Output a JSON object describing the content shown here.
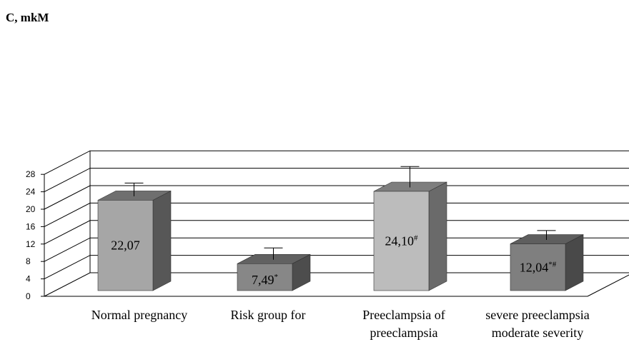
{
  "chart_data": {
    "type": "bar",
    "ylabel": "C, mkM",
    "ylim": [
      0,
      28
    ],
    "yticks": [
      0,
      4,
      8,
      12,
      16,
      20,
      24,
      28
    ],
    "grid": true,
    "three_d": true,
    "categories": [
      [
        "Normal pregnancy"
      ],
      [
        "Risk group for",
        "preeclampsia"
      ],
      [
        "Preeclampsia of",
        "moderate severity"
      ],
      [
        "severe preeclampsia"
      ]
    ],
    "values": [
      22.07,
      7.49,
      24.1,
      12.04
    ],
    "error_upper": [
      26.0,
      11.1,
      29.8,
      15.1
    ],
    "data_labels": [
      {
        "text": "22,07",
        "sup": ""
      },
      {
        "text": "7,49",
        "sup": "*"
      },
      {
        "text": "24,10",
        "sup": "#"
      },
      {
        "text": "12,04",
        "sup": "*#"
      }
    ],
    "colors": {
      "front": [
        "#a6a6a6",
        "#878787",
        "#bcbcbc",
        "#7f7f7f"
      ],
      "side": [
        "#575757",
        "#4d4d4d",
        "#6a6a6a",
        "#494949"
      ],
      "top": [
        "#6f6f6f",
        "#616161",
        "#7e7e7e",
        "#5e5e5e"
      ],
      "grid": "#000000"
    }
  }
}
